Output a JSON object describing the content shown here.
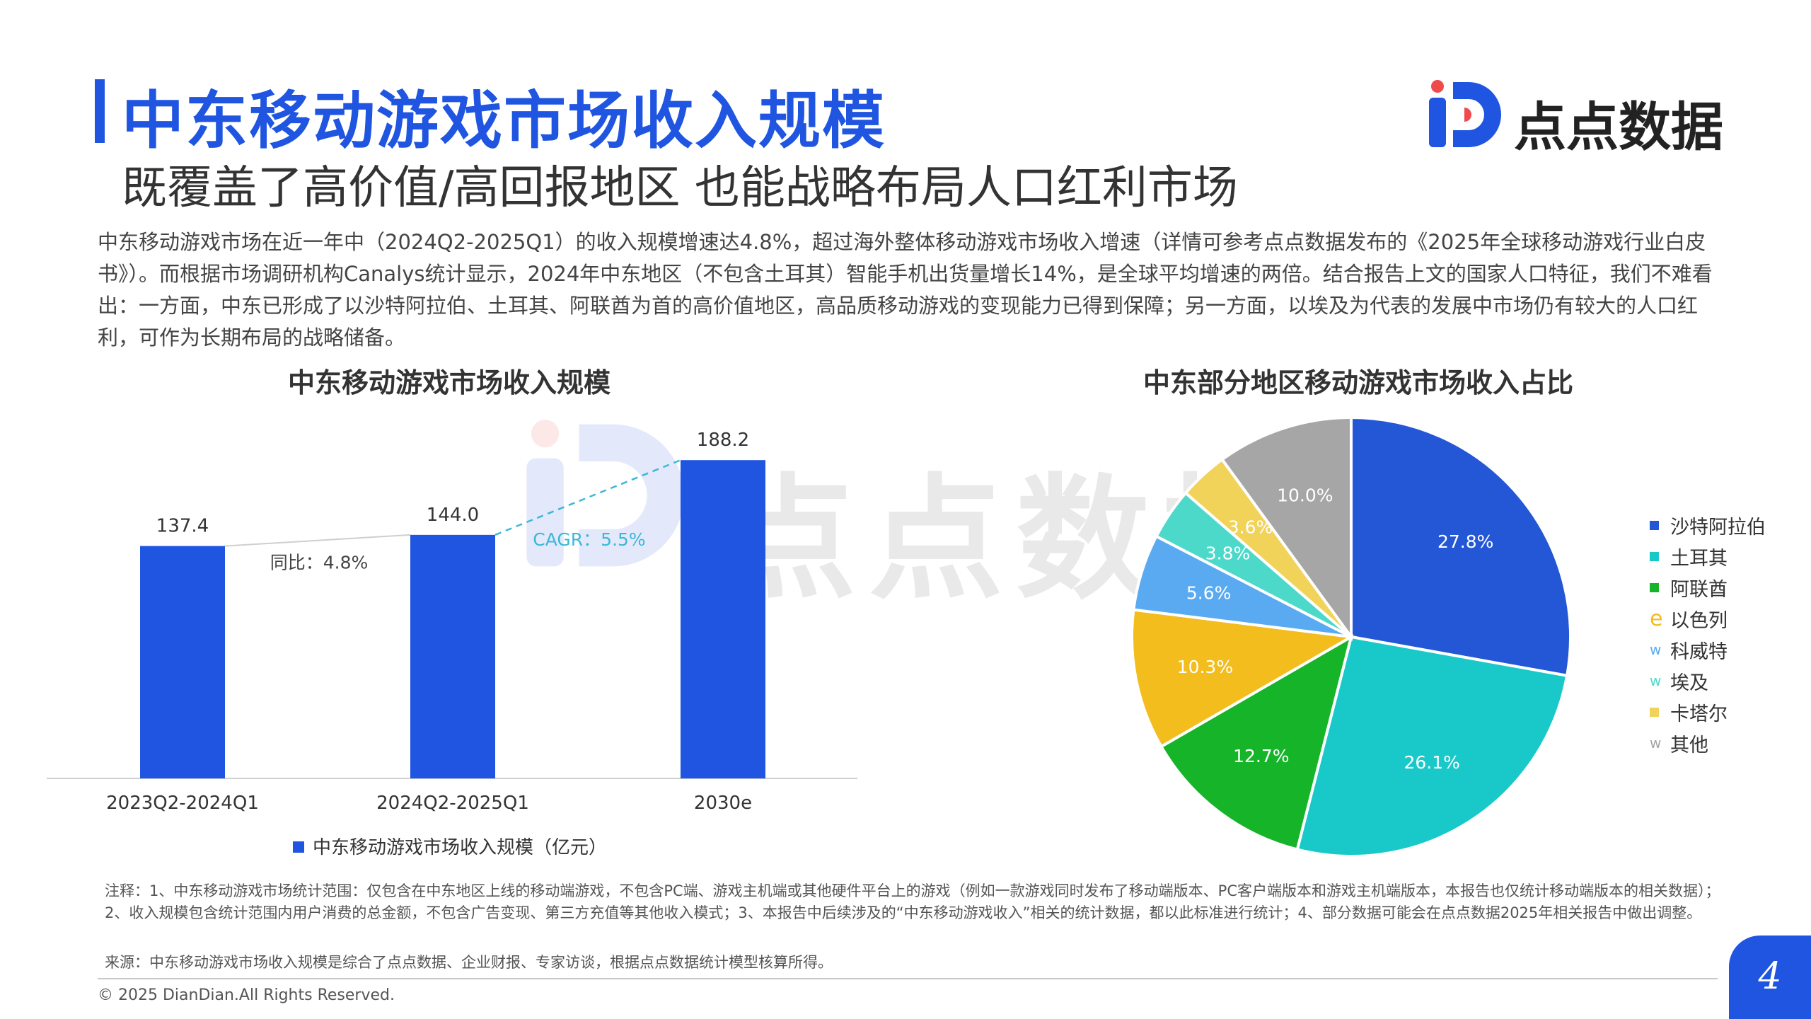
{
  "header": {
    "title": "中东移动游戏市场收入规模",
    "subtitle": "既覆盖了高价值/高回报地区 也能战略布局人口红利市场",
    "logo_text": "点点数据"
  },
  "intro": "中东移动游戏市场在近一年中（2024Q2-2025Q1）的收入规模增速达4.8%，超过海外整体移动游戏市场收入增速（详情可参考点点数据发布的《2025年全球移动游戏行业白皮书》）。而根据市场调研机构Canalys统计显示，2024年中东地区（不包含土耳其）智能手机出货量增长14%，是全球平均增速的两倍。结合报告上文的国家人口特征，我们不难看出：一方面，中东已形成了以沙特阿拉伯、土耳其、阿联酋为首的高价值地区，高品质移动游戏的变现能力已得到保障；另一方面，以埃及为代表的发展中市场仍有较大的人口红利，可作为长期布局的战略储备。",
  "watermark_text": "点点数据",
  "colors": {
    "brand": "#1f55e0",
    "bar": "#1f55e0",
    "cagr": "#3ab8d6"
  },
  "chart_data": [
    {
      "type": "bar",
      "title": "中东移动游戏市场收入规模",
      "categories": [
        "2023Q2-2024Q1",
        "2024Q2-2025Q1",
        "2030e"
      ],
      "series": [
        {
          "name": "中东移动游戏市场收入规模（亿元）",
          "values": [
            137.4,
            144.0,
            188.2
          ]
        }
      ],
      "annotations": {
        "yoy": "同比：4.8%",
        "cagr": "CAGR：5.5%"
      },
      "ylim": [
        0,
        200
      ],
      "grid": false,
      "legend": "bottom"
    },
    {
      "type": "pie",
      "title": "中东部分地区移动游戏市场收入占比",
      "labels": [
        "沙特阿拉伯",
        "土耳其",
        "阿联酋",
        "以色列",
        "科威特",
        "埃及",
        "卡塔尔",
        "其他"
      ],
      "values": [
        27.8,
        26.1,
        12.7,
        10.3,
        5.6,
        3.8,
        3.6,
        10.0
      ],
      "value_labels": [
        "27.8%",
        "26.1%",
        "12.7%",
        "10.3%",
        "5.6%",
        "3.8%",
        "3.6%",
        "10.0%"
      ],
      "colors": [
        "#2457d6",
        "#19c9c9",
        "#16b429",
        "#f2bd1d",
        "#5aaaf2",
        "#4dd9c9",
        "#f2d35a",
        "#a6a6a6"
      ],
      "legend_markers": [
        "■",
        "■",
        "■",
        "e",
        "w",
        "w",
        "■",
        "w"
      ],
      "legend": "right"
    }
  ],
  "notes": "注释：1、中东移动游戏市场统计范围：仅包含在中东地区上线的移动端游戏，不包含PC端、游戏主机端或其他硬件平台上的游戏（例如一款游戏同时发布了移动端版本、PC客户端版本和游戏主机端版本，本报告也仅统计移动端版本的相关数据）；2、收入规模包含统计范围内用户消费的总金额，不包含广告变现、第三方充值等其他收入模式；3、本报告中后续涉及的“中东移动游戏收入”相关的统计数据，都以此标准进行统计；4、部分数据可能会在点点数据2025年相关报告中做出调整。",
  "source": "来源：中东移动游戏市场收入规模是综合了点点数据、企业财报、专家访谈，根据点点数据统计模型核算所得。",
  "footer": {
    "copyright": "© 2025 DianDian.All Rights Reserved.",
    "page_number": "4"
  }
}
